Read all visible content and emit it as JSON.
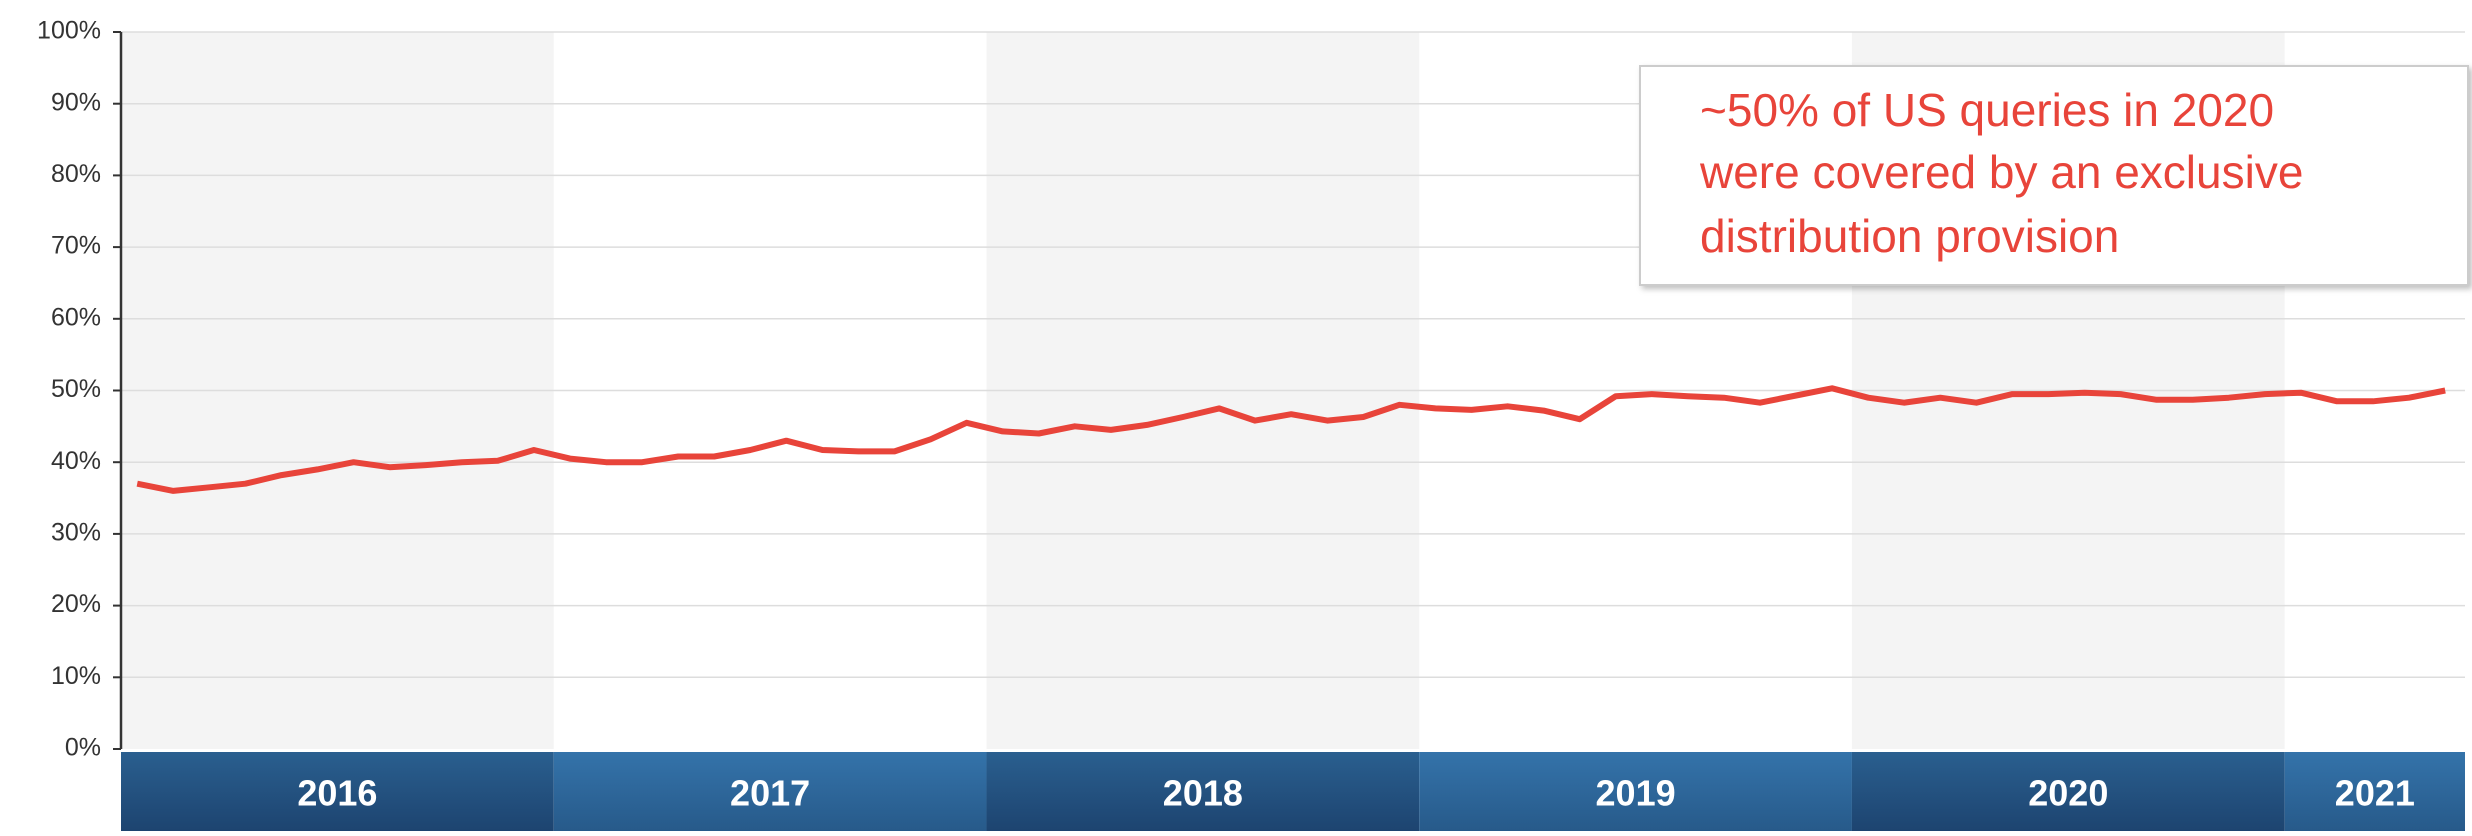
{
  "chart_data": {
    "type": "line",
    "annotation": [
      "~50% of US queries in 2020",
      "were covered by an exclusive",
      "distribution provision"
    ],
    "x_groups": [
      "2016",
      "2017",
      "2018",
      "2019",
      "2020",
      "2021"
    ],
    "categories": [
      null,
      null,
      null,
      null,
      null,
      null,
      null,
      null,
      null,
      null,
      null,
      null,
      null,
      null,
      null,
      null,
      null,
      null,
      null,
      null,
      null,
      null,
      null,
      null,
      null,
      null,
      null,
      null,
      null,
      null,
      null,
      null,
      null,
      null,
      null,
      null,
      null,
      null,
      null,
      null,
      null,
      null,
      null,
      null,
      null,
      null,
      null,
      null,
      null,
      null,
      null,
      null,
      null,
      null,
      null,
      null,
      null,
      null,
      null,
      null,
      null,
      null,
      null,
      null,
      null
    ],
    "series": [
      {
        "color": "#e8443a",
        "values": [
          37,
          36,
          36.5,
          37,
          38.2,
          39,
          40,
          39.3,
          39.6,
          40,
          40.2,
          41.7,
          40.5,
          40,
          40,
          40.8,
          40.8,
          41.7,
          43,
          41.7,
          41.5,
          41.5,
          43.2,
          45.5,
          44.3,
          44,
          45,
          44.5,
          45.2,
          46.3,
          47.5,
          45.8,
          46.7,
          45.8,
          46.3,
          48,
          47.5,
          47.3,
          47.8,
          47.2,
          46,
          49.2,
          49.5,
          49.2,
          49,
          48.3,
          49.3,
          50.3,
          49,
          48.3,
          49,
          48.3,
          49.5,
          49.5,
          49.7,
          49.5,
          48.7,
          48.7,
          49,
          49.5,
          49.7,
          48.5,
          48.5,
          49,
          50
        ]
      }
    ],
    "ylim": [
      0,
      100
    ],
    "yticks": [
      {
        "value": 0,
        "label": "0%"
      },
      {
        "value": 10,
        "label": "10%"
      },
      {
        "value": 20,
        "label": "20%"
      },
      {
        "value": 30,
        "label": "30%"
      },
      {
        "value": 40,
        "label": "40%"
      },
      {
        "value": 50,
        "label": "50%"
      },
      {
        "value": 60,
        "label": "60%"
      },
      {
        "value": 70,
        "label": "70%"
      },
      {
        "value": 80,
        "label": "80%"
      },
      {
        "value": 90,
        "label": "90%"
      },
      {
        "value": 100,
        "label": "100%"
      }
    ],
    "grid": true
  }
}
